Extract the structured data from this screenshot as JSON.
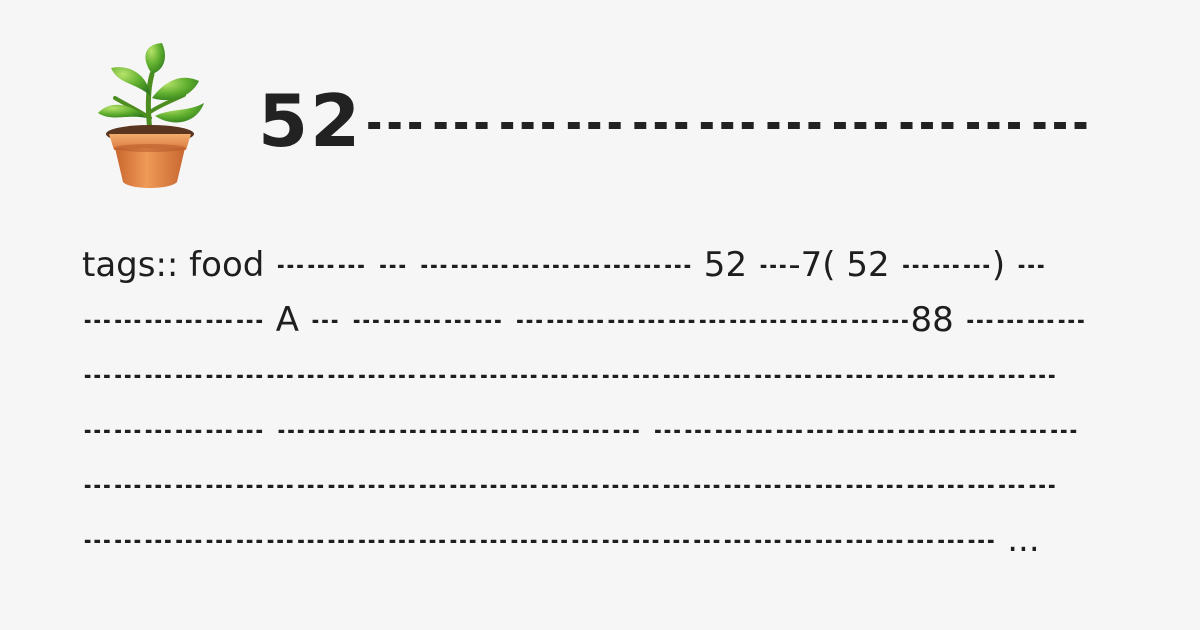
{
  "page": {
    "title": "52𝌀𝌀𝌀𝌀𝌀𝌀𝌀𝌀𝌀𝌀𝌀",
    "logo_icon": "potted-plant-icon",
    "excerpt": "tags:: food 𝌀𝌀𝌀 𝌀 𝌀𝌀𝌀𝌀𝌀𝌀𝌀𝌀𝌀 52 𝌀-7( 52 𝌀𝌀𝌀) 𝌀 𝌀𝌀𝌀𝌀𝌀𝌀 A 𝌀 𝌀𝌀𝌀𝌀𝌀 𝌀𝌀𝌀𝌀𝌀𝌀𝌀𝌀𝌀𝌀𝌀𝌀𝌀88 𝌀𝌀𝌀𝌀𝌀𝌀𝌀𝌀𝌀𝌀𝌀𝌀𝌀𝌀𝌀𝌀𝌀𝌀𝌀𝌀𝌀𝌀𝌀𝌀𝌀𝌀𝌀𝌀𝌀𝌀𝌀𝌀𝌀𝌀𝌀𝌀𝌀𝌀𝌀𝌀𝌀𝌀 𝌀𝌀𝌀𝌀𝌀𝌀𝌀𝌀𝌀𝌀𝌀𝌀 𝌀𝌀𝌀𝌀𝌀𝌀𝌀𝌀𝌀𝌀𝌀𝌀𝌀𝌀𝌀𝌀𝌀𝌀𝌀𝌀𝌀𝌀𝌀𝌀𝌀𝌀𝌀𝌀𝌀𝌀𝌀𝌀𝌀𝌀𝌀𝌀𝌀𝌀𝌀𝌀𝌀𝌀𝌀𝌀𝌀𝌀𝌀𝌀𝌀𝌀𝌀𝌀𝌀𝌀𝌀𝌀𝌀𝌀𝌀𝌀𝌀𝌀𝌀𝌀𝌀𝌀𝌀𝌀𝌀𝌀𝌀𝌀𝌀𝌀𝌀𝌀 ..."
  },
  "colors": {
    "background": "#f7f6f7",
    "text": "#1e1e1e",
    "title": "#222222"
  }
}
